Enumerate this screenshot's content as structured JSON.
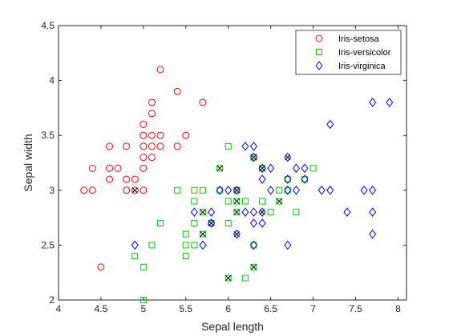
{
  "chart_data": {
    "type": "scatter",
    "xlabel": "Sepal length",
    "ylabel": "Sepal width",
    "xlim": [
      4,
      8.1
    ],
    "ylim": [
      2,
      4.5
    ],
    "xticks": [
      "4",
      "4.5",
      "5",
      "5.5",
      "6",
      "6.5",
      "7",
      "7.5",
      "8"
    ],
    "yticks": [
      "2",
      "2.5",
      "3",
      "3.5",
      "4",
      "4.5"
    ],
    "grid": false,
    "legend_position": "top-right",
    "series": [
      {
        "name": "Iris-setosa",
        "marker": "circle",
        "color": "#ff0000",
        "points": [
          [
            4.3,
            3.0
          ],
          [
            4.4,
            3.0
          ],
          [
            4.4,
            3.2
          ],
          [
            4.5,
            2.3
          ],
          [
            4.6,
            3.1
          ],
          [
            4.6,
            3.2
          ],
          [
            4.6,
            3.4
          ],
          [
            4.7,
            3.2
          ],
          [
            4.8,
            3.0
          ],
          [
            4.8,
            3.1
          ],
          [
            4.8,
            3.4
          ],
          [
            4.9,
            3.0
          ],
          [
            4.9,
            3.1
          ],
          [
            5.0,
            3.0
          ],
          [
            5.0,
            3.2
          ],
          [
            5.0,
            3.3
          ],
          [
            5.0,
            3.4
          ],
          [
            5.0,
            3.5
          ],
          [
            5.0,
            3.6
          ],
          [
            5.1,
            3.3
          ],
          [
            5.1,
            3.4
          ],
          [
            5.1,
            3.5
          ],
          [
            5.1,
            3.7
          ],
          [
            5.1,
            3.8
          ],
          [
            5.2,
            3.4
          ],
          [
            5.2,
            3.5
          ],
          [
            5.2,
            4.1
          ],
          [
            5.4,
            3.4
          ],
          [
            5.4,
            3.9
          ],
          [
            5.5,
            3.5
          ],
          [
            5.7,
            3.8
          ]
        ]
      },
      {
        "name": "Iris-versicolor",
        "marker": "square",
        "color": "#00cc00",
        "points": [
          [
            4.9,
            2.4
          ],
          [
            5.0,
            2.0
          ],
          [
            5.0,
            2.3
          ],
          [
            5.1,
            2.5
          ],
          [
            5.2,
            2.7
          ],
          [
            5.4,
            3.0
          ],
          [
            5.5,
            2.4
          ],
          [
            5.5,
            2.5
          ],
          [
            5.5,
            2.6
          ],
          [
            5.6,
            2.5
          ],
          [
            5.6,
            2.7
          ],
          [
            5.6,
            2.9
          ],
          [
            5.6,
            3.0
          ],
          [
            5.7,
            2.6
          ],
          [
            5.7,
            2.8
          ],
          [
            5.7,
            3.0
          ],
          [
            5.8,
            2.7
          ],
          [
            5.9,
            3.0
          ],
          [
            5.9,
            3.2
          ],
          [
            6.0,
            2.2
          ],
          [
            6.0,
            2.7
          ],
          [
            6.0,
            2.9
          ],
          [
            6.0,
            3.4
          ],
          [
            6.1,
            2.8
          ],
          [
            6.1,
            2.9
          ],
          [
            6.1,
            3.0
          ],
          [
            6.2,
            2.2
          ],
          [
            6.2,
            2.9
          ],
          [
            6.3,
            2.3
          ],
          [
            6.3,
            2.5
          ],
          [
            6.3,
            3.3
          ],
          [
            6.4,
            2.9
          ],
          [
            6.4,
            3.2
          ],
          [
            6.5,
            2.8
          ],
          [
            6.6,
            2.9
          ],
          [
            6.6,
            3.0
          ],
          [
            6.7,
            3.0
          ],
          [
            6.7,
            3.1
          ],
          [
            6.8,
            2.8
          ],
          [
            6.9,
            3.1
          ],
          [
            7.0,
            3.2
          ]
        ]
      },
      {
        "name": "Iris-virginica",
        "marker": "diamond",
        "color": "#0000ff",
        "points": [
          [
            4.9,
            2.5
          ],
          [
            5.6,
            2.8
          ],
          [
            5.7,
            2.5
          ],
          [
            5.8,
            2.7
          ],
          [
            5.8,
            2.8
          ],
          [
            5.9,
            3.0
          ],
          [
            6.0,
            3.0
          ],
          [
            6.1,
            2.6
          ],
          [
            6.1,
            3.0
          ],
          [
            6.2,
            2.8
          ],
          [
            6.2,
            3.4
          ],
          [
            6.3,
            2.5
          ],
          [
            6.3,
            2.7
          ],
          [
            6.3,
            2.8
          ],
          [
            6.3,
            3.3
          ],
          [
            6.3,
            3.4
          ],
          [
            6.4,
            2.7
          ],
          [
            6.4,
            2.8
          ],
          [
            6.4,
            3.1
          ],
          [
            6.4,
            3.2
          ],
          [
            6.5,
            3.0
          ],
          [
            6.5,
            3.2
          ],
          [
            6.7,
            2.5
          ],
          [
            6.7,
            3.0
          ],
          [
            6.7,
            3.1
          ],
          [
            6.7,
            3.3
          ],
          [
            6.8,
            3.0
          ],
          [
            6.8,
            3.2
          ],
          [
            6.9,
            3.1
          ],
          [
            6.9,
            3.2
          ],
          [
            7.1,
            3.0
          ],
          [
            7.2,
            3.0
          ],
          [
            7.2,
            3.6
          ],
          [
            7.4,
            2.8
          ],
          [
            7.6,
            3.0
          ],
          [
            7.7,
            2.6
          ],
          [
            7.7,
            2.8
          ],
          [
            7.7,
            3.0
          ],
          [
            7.7,
            3.8
          ],
          [
            7.9,
            3.8
          ]
        ]
      }
    ],
    "highlight": {
      "marker": "x",
      "color": "#000000",
      "points": [
        [
          4.9,
          3.0
        ],
        [
          5.7,
          2.6
        ],
        [
          5.7,
          2.8
        ],
        [
          5.8,
          2.7
        ],
        [
          5.9,
          3.2
        ],
        [
          6.0,
          2.2
        ],
        [
          6.1,
          2.6
        ],
        [
          6.1,
          2.8
        ],
        [
          6.1,
          2.9
        ],
        [
          6.1,
          3.0
        ],
        [
          6.3,
          2.3
        ],
        [
          6.3,
          3.3
        ],
        [
          6.4,
          2.8
        ],
        [
          6.4,
          3.2
        ],
        [
          6.6,
          2.9
        ],
        [
          6.7,
          3.3
        ]
      ]
    }
  }
}
